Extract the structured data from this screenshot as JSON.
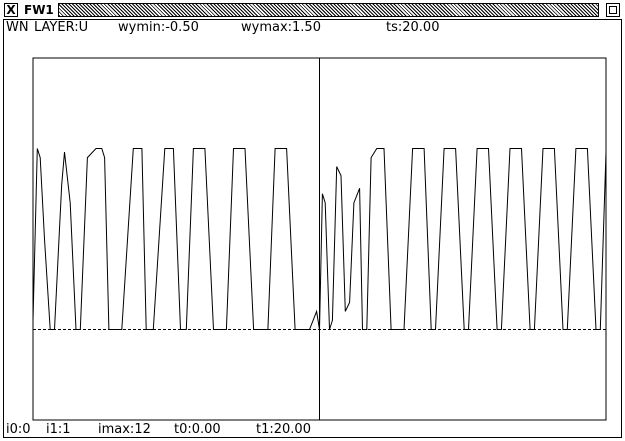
{
  "window": {
    "title": "FW1",
    "close_glyph": "X",
    "close_icon": "close-icon",
    "resize_icon": "resize-icon"
  },
  "header": {
    "wn": "WN",
    "layer": "LAYER:U",
    "wymin": "wymin:-0.50",
    "wymax": "wymax:1.50",
    "ts": "ts:20.00"
  },
  "footer": {
    "i0": "i0:0",
    "i1": "i1:1",
    "imax": "imax:12",
    "t0": "t0:0.00",
    "t1": "t1:20.00"
  },
  "chart_data": {
    "type": "line",
    "ylim": [
      -0.5,
      1.5
    ],
    "xlim": [
      0,
      40
    ],
    "baseline": 0,
    "divider_t": 20,
    "series": [
      {
        "x": [
          0,
          0.3,
          0.5,
          0.8,
          1.2,
          1.5,
          2,
          2.2,
          2.6,
          3.0,
          3.3,
          3.8,
          4.4,
          4.8,
          5,
          5.3,
          5.6,
          6.2,
          7.0,
          7.6,
          7.9,
          8.4,
          9.2,
          9.8,
          10.3,
          10.7,
          11.2,
          12.0,
          12.6,
          13.1,
          13.5,
          14.0,
          14.8,
          15.4,
          16.0,
          16.4,
          16.9,
          17.7,
          18.3,
          18.9,
          19.3,
          19.8,
          20.0,
          20.2,
          20.4,
          20.7,
          20.9,
          21.2,
          21.5,
          21.8,
          22.1,
          22.4,
          22.8,
          23.0,
          23.3,
          23.6,
          24.0,
          24.5,
          25.0,
          25.5,
          25.9,
          26.5,
          27.3,
          27.8,
          28.1,
          28.7,
          29.5,
          30.1,
          30.4,
          31.0,
          31.8,
          32.4,
          32.7,
          33.3,
          34.1,
          34.7,
          35.0,
          35.6,
          36.4,
          37.0,
          37.3,
          37.9,
          38.7,
          39.3,
          39.6,
          40.0
        ],
        "y": [
          0.05,
          1.0,
          0.95,
          0.5,
          0.0,
          0.0,
          0.8,
          0.98,
          0.7,
          0.0,
          0.0,
          0.95,
          1.0,
          1.0,
          0.95,
          0.0,
          0.0,
          0.0,
          1.0,
          1.0,
          0.0,
          0.0,
          1.0,
          1.0,
          0.0,
          0.0,
          1.0,
          1.0,
          0.0,
          0.0,
          0.0,
          1.0,
          1.0,
          0.0,
          0.0,
          0.0,
          1.0,
          1.0,
          0.0,
          0.0,
          0.0,
          0.1,
          0.0,
          0.75,
          0.7,
          0.0,
          0.05,
          0.9,
          0.85,
          0.1,
          0.15,
          0.7,
          0.78,
          0.0,
          0.0,
          0.95,
          1.0,
          1.0,
          0.0,
          0.0,
          0.0,
          1.0,
          1.0,
          0.0,
          0.0,
          1.0,
          1.0,
          0.0,
          0.0,
          1.0,
          1.0,
          0.0,
          0.0,
          1.0,
          1.0,
          0.0,
          0.0,
          1.0,
          1.0,
          0.0,
          0.0,
          1.0,
          1.0,
          0.0,
          0.0,
          0.98
        ]
      }
    ]
  }
}
